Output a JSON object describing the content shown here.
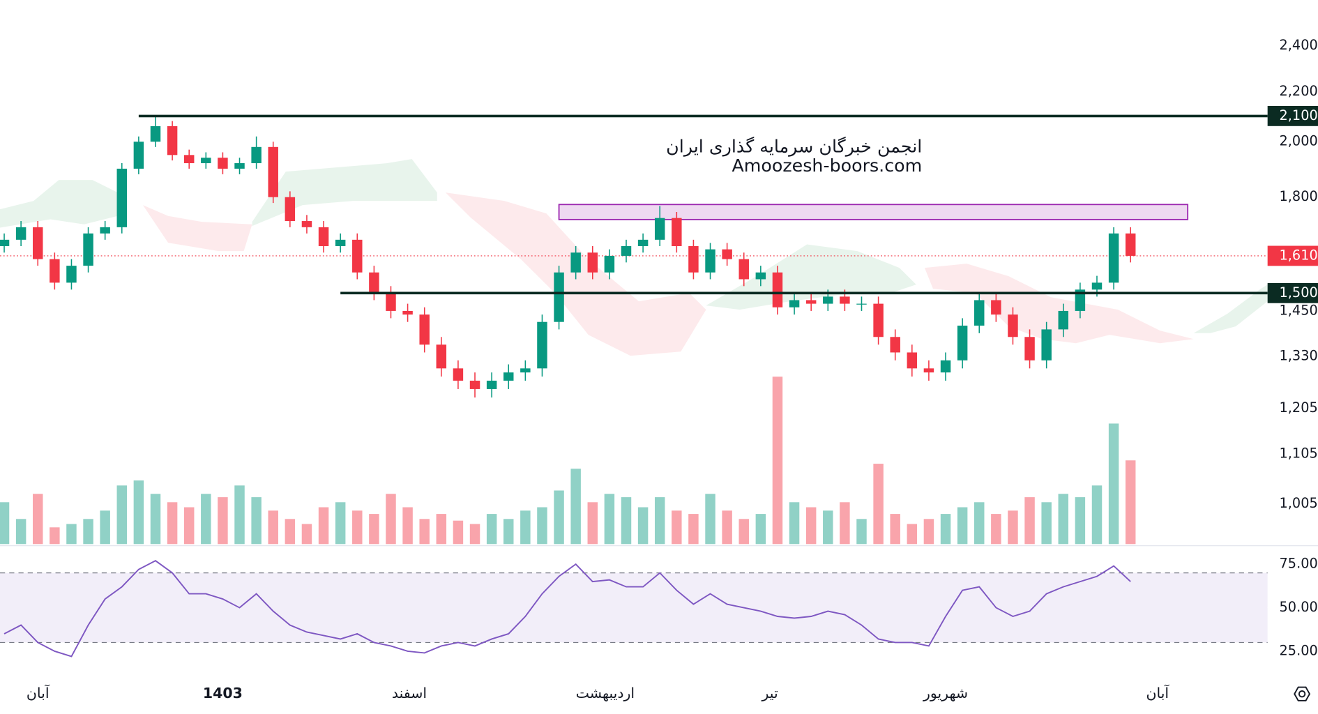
{
  "chart_data": {
    "type": "candlestick",
    "watermark": [
      "انجمن خبرگان سرمایه گذاری ایران",
      "Amoozesh-boors.com"
    ],
    "log_scale": true,
    "up_color": "#089981",
    "down_color": "#f23645",
    "open": [
      1640,
      1660,
      1700,
      1600,
      1530,
      1580,
      1680,
      1700,
      1900,
      2000,
      2060,
      1950,
      1920,
      1940,
      1900,
      1920,
      1980,
      1800,
      1720,
      1700,
      1640,
      1660,
      1560,
      1500,
      1450,
      1440,
      1360,
      1300,
      1270,
      1250,
      1270,
      1290,
      1300,
      1420,
      1560,
      1620,
      1560,
      1610,
      1640,
      1660,
      1730,
      1640,
      1560,
      1630,
      1600,
      1540,
      1560,
      1460,
      1480,
      1470,
      1490,
      1470,
      1470,
      1380,
      1340,
      1300,
      1290,
      1320,
      1410,
      1480,
      1440,
      1380,
      1320,
      1400,
      1450,
      1510,
      1530,
      1680
    ],
    "high": [
      1680,
      1720,
      1720,
      1620,
      1600,
      1700,
      1720,
      1920,
      2020,
      2100,
      2080,
      1970,
      1960,
      1960,
      1940,
      2020,
      2000,
      1820,
      1740,
      1720,
      1680,
      1680,
      1580,
      1520,
      1470,
      1460,
      1380,
      1320,
      1290,
      1290,
      1310,
      1320,
      1440,
      1580,
      1640,
      1640,
      1630,
      1660,
      1680,
      1770,
      1750,
      1660,
      1650,
      1650,
      1620,
      1580,
      1580,
      1500,
      1500,
      1510,
      1510,
      1490,
      1490,
      1400,
      1360,
      1320,
      1340,
      1430,
      1500,
      1500,
      1460,
      1400,
      1420,
      1470,
      1530,
      1550,
      1700,
      1700
    ],
    "low": [
      1620,
      1640,
      1580,
      1510,
      1510,
      1560,
      1660,
      1680,
      1880,
      1980,
      1930,
      1900,
      1900,
      1880,
      1880,
      1900,
      1780,
      1700,
      1680,
      1620,
      1620,
      1540,
      1480,
      1430,
      1420,
      1340,
      1280,
      1250,
      1230,
      1230,
      1250,
      1270,
      1280,
      1400,
      1540,
      1540,
      1540,
      1590,
      1620,
      1640,
      1620,
      1540,
      1540,
      1580,
      1520,
      1520,
      1440,
      1440,
      1450,
      1450,
      1450,
      1450,
      1360,
      1320,
      1280,
      1270,
      1270,
      1300,
      1390,
      1420,
      1360,
      1300,
      1300,
      1380,
      1430,
      1490,
      1510,
      1590
    ],
    "close": [
      1660,
      1700,
      1600,
      1530,
      1580,
      1680,
      1700,
      1900,
      2000,
      2060,
      1950,
      1920,
      1940,
      1900,
      1920,
      1980,
      1800,
      1720,
      1700,
      1640,
      1660,
      1560,
      1500,
      1450,
      1440,
      1360,
      1300,
      1270,
      1250,
      1270,
      1290,
      1300,
      1420,
      1560,
      1620,
      1560,
      1610,
      1640,
      1660,
      1730,
      1640,
      1560,
      1630,
      1600,
      1540,
      1560,
      1460,
      1480,
      1470,
      1490,
      1470,
      1470,
      1380,
      1340,
      1300,
      1290,
      1320,
      1410,
      1480,
      1440,
      1380,
      1320,
      1400,
      1450,
      1510,
      1530,
      1680,
      1610
    ],
    "volume": [
      25,
      15,
      30,
      10,
      12,
      15,
      20,
      35,
      38,
      30,
      25,
      22,
      30,
      28,
      35,
      28,
      20,
      15,
      12,
      22,
      25,
      20,
      18,
      30,
      22,
      15,
      18,
      14,
      12,
      18,
      15,
      20,
      22,
      32,
      45,
      25,
      30,
      28,
      22,
      28,
      20,
      18,
      30,
      20,
      15,
      18,
      100,
      25,
      22,
      20,
      25,
      15,
      48,
      18,
      12,
      15,
      18,
      22,
      25,
      18,
      20,
      28,
      25,
      30,
      28,
      35,
      72,
      50
    ],
    "volume_ylim": [
      0,
      325
    ],
    "xlim": [
      -0.25,
      75.15
    ],
    "xticks": [
      {
        "value": 2,
        "label": "آبان"
      },
      {
        "value": 13,
        "label": "1403",
        "bold": true
      },
      {
        "value": 24.1,
        "label": "اسفند"
      },
      {
        "value": 35.75,
        "label": "اردیبهشت"
      },
      {
        "value": 45.55,
        "label": "تیر"
      },
      {
        "value": 56,
        "label": "شهریور"
      },
      {
        "value": 68.6,
        "label": "آبان"
      }
    ],
    "ylim": [
      931,
      2618
    ],
    "yticks": [
      {
        "value": 2400,
        "label": "2,400"
      },
      {
        "value": 2200,
        "label": "2,200"
      },
      {
        "value": 2000,
        "label": "2,000"
      },
      {
        "value": 1800,
        "label": "1,800"
      },
      {
        "value": 1450,
        "label": "1,450"
      },
      {
        "value": 1330,
        "label": "1,330"
      },
      {
        "value": 1205,
        "label": "1,205"
      },
      {
        "value": 1105,
        "label": "1,105"
      },
      {
        "value": 1005,
        "label": "1,005"
      }
    ],
    "levels": [
      {
        "value": 2100,
        "label": "2,100",
        "from": 8
      },
      {
        "value": 1500,
        "label": "1,500",
        "from": 20
      }
    ],
    "last_price": {
      "value": 1610,
      "label": "1,610"
    },
    "zone": {
      "from": 33,
      "to": 70.4,
      "low": 1725,
      "high": 1775
    },
    "rsi": {
      "values": [
        35,
        40,
        30,
        25,
        22,
        40,
        55,
        62,
        72,
        77,
        70,
        58,
        58,
        55,
        50,
        58,
        48,
        40,
        36,
        34,
        32,
        35,
        30,
        28,
        25,
        24,
        28,
        30,
        28,
        32,
        35,
        45,
        58,
        68,
        75,
        65,
        66,
        62,
        62,
        70,
        60,
        52,
        58,
        52,
        50,
        48,
        45,
        44,
        45,
        48,
        46,
        40,
        32,
        30,
        30,
        28,
        45,
        60,
        62,
        50,
        45,
        48,
        58,
        62,
        65,
        68,
        74,
        65
      ],
      "color": "#7e57c2",
      "ylim": [
        14.4,
        85.6
      ],
      "bands": [
        30,
        70
      ],
      "yticks": [
        {
          "value": 75,
          "label": "75.00"
        },
        {
          "value": 50,
          "label": "50.00"
        },
        {
          "value": 25,
          "label": "25.00"
        }
      ]
    }
  }
}
